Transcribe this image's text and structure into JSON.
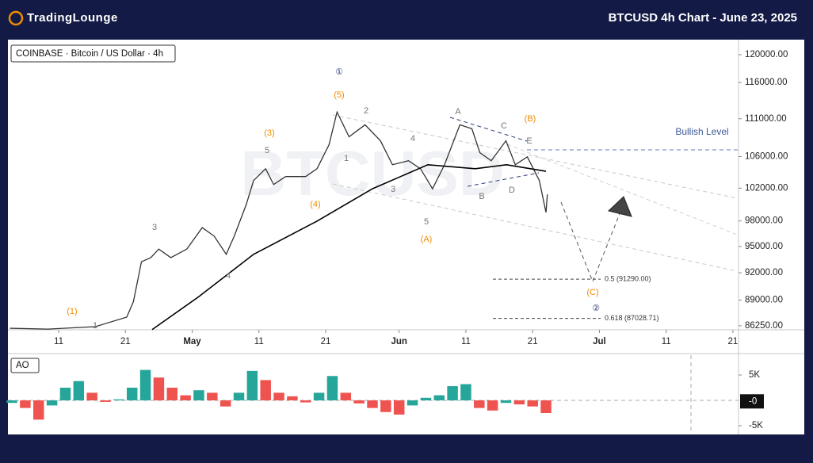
{
  "header": {
    "logo": "TradingLounge",
    "title": "BTCUSD 4h Chart - June 23, 2025"
  },
  "chart_data": [
    {
      "type": "line",
      "symbol": "COINBASE · Bitcoin / US Dollar · 4h",
      "watermark": "BTCUSD",
      "log": true,
      "xlim": [
        93.4,
        202.6
      ],
      "xticks": [
        {
          "value": 101,
          "label": "11"
        },
        {
          "value": 111,
          "label": "21"
        },
        {
          "value": 121,
          "label": "May"
        },
        {
          "value": 131,
          "label": "11"
        },
        {
          "value": 141,
          "label": "21"
        },
        {
          "value": 152,
          "label": "Jun"
        },
        {
          "value": 162,
          "label": "11"
        },
        {
          "value": 172,
          "label": "21"
        },
        {
          "value": 182,
          "label": "Jul"
        },
        {
          "value": 192,
          "label": "11"
        },
        {
          "value": 202,
          "label": "21"
        }
      ],
      "ylim": [
        85830,
        121990
      ],
      "yticks": [
        {
          "value": 86250,
          "label": "86250.00"
        },
        {
          "value": 89000,
          "label": "89000.00"
        },
        {
          "value": 92000,
          "label": "92000.00"
        },
        {
          "value": 95000,
          "label": "95000.00"
        },
        {
          "value": 98000,
          "label": "98000.00"
        },
        {
          "value": 102000,
          "label": "102000.00"
        },
        {
          "value": 106000,
          "label": "106000.00"
        },
        {
          "value": 111000,
          "label": "111000.00"
        },
        {
          "value": 116000,
          "label": "116000.00"
        },
        {
          "value": 120000,
          "label": "120000.00"
        }
      ],
      "series": [
        {
          "color": "#333333",
          "x": [
            93.7,
            99.4,
            106.5,
            111.2,
            112.2,
            113.4,
            114.8,
            116,
            117.8,
            120.2,
            122.5,
            124.3,
            126.1,
            127.3,
            129.1,
            130.2,
            132,
            133.2,
            135,
            138,
            139.7,
            141.5,
            142.7,
            144.5,
            146.9,
            149.2,
            151,
            153.4,
            155.2,
            157,
            158.8,
            161.1,
            162.9,
            164.1,
            165.8,
            168,
            169.4,
            171.2,
            173,
            174,
            174.2
          ],
          "values": [
            85990,
            85900,
            86160,
            87170,
            88830,
            93250,
            93720,
            94700,
            93720,
            94700,
            97210,
            96200,
            94100,
            96200,
            99980,
            102950,
            104440,
            102450,
            103450,
            103450,
            104440,
            107540,
            111900,
            108580,
            110180,
            108060,
            104950,
            105460,
            104440,
            101920,
            104950,
            110180,
            109650,
            106500,
            105460,
            108060,
            104950,
            105960,
            102950,
            99020,
            101220
          ]
        },
        {
          "color": "#000000",
          "x": [
            115,
            122,
            130.2,
            139.7,
            148,
            156.3,
            163.4,
            168.1,
            174
          ],
          "values": [
            85850,
            89370,
            94100,
            97980,
            101920,
            104950,
            104440,
            104950,
            104110
          ]
        }
      ],
      "annotations": [
        {
          "text": "(1)",
          "color": "#f08c00"
        },
        {
          "text": "(3)",
          "color": "#f08c00"
        },
        {
          "text": "(5)",
          "color": "#f08c00"
        },
        {
          "text": "(4)",
          "color": "#f08c00"
        },
        {
          "text": "(A)",
          "color": "#f08c00"
        },
        {
          "text": "(B)",
          "color": "#f08c00"
        },
        {
          "text": "(C)",
          "color": "#f08c00"
        },
        {
          "text": "1",
          "color": "#777777"
        },
        {
          "text": "3",
          "color": "#777777"
        },
        {
          "text": "4",
          "color": "#777777"
        },
        {
          "text": "5",
          "color": "#777777"
        },
        {
          "text": "1",
          "color": "#777777"
        },
        {
          "text": "2",
          "color": "#777777"
        },
        {
          "text": "3",
          "color": "#777777"
        },
        {
          "text": "4",
          "color": "#777777"
        },
        {
          "text": "5",
          "color": "#777777"
        },
        {
          "text": "A",
          "color": "#777777"
        },
        {
          "text": "B",
          "color": "#777777"
        },
        {
          "text": "C",
          "color": "#777777"
        },
        {
          "text": "D",
          "color": "#777777"
        },
        {
          "text": "E",
          "color": "#777777"
        },
        {
          "text": "①",
          "color": "#2a3a7a"
        },
        {
          "text": "②",
          "color": "#2a3a7a"
        }
      ],
      "bullish_level": {
        "label": "Bullish Level",
        "value": 106870
      },
      "fib_levels": [
        {
          "label": "0.5 (91290.00)",
          "value": 91290
        },
        {
          "label": "0.618 (87028.71)",
          "value": 87028.71
        }
      ]
    },
    {
      "type": "bar",
      "title": "AO",
      "x": [
        94,
        96,
        98,
        100,
        102,
        104,
        106,
        108,
        110,
        112,
        114,
        116,
        118,
        120,
        122,
        124,
        126,
        128,
        130,
        132,
        134,
        136,
        138,
        140,
        142,
        144,
        146,
        148,
        150,
        152,
        154,
        156,
        158,
        160,
        162,
        164,
        166,
        168,
        170,
        172,
        174
      ],
      "values": [
        -500,
        -1500,
        -3800,
        -1000,
        2500,
        3800,
        1500,
        -300,
        200,
        2500,
        6000,
        4500,
        2500,
        1000,
        2000,
        1500,
        -1200,
        1500,
        5800,
        4000,
        1500,
        800,
        -400,
        1500,
        4800,
        1500,
        -600,
        -1500,
        -2300,
        -2800,
        -1000,
        500,
        1000,
        2800,
        3200,
        -1500,
        -2000,
        -500,
        -800,
        -1200,
        -2500
      ],
      "ylim": [
        -6406,
        8906
      ],
      "yticks": [
        {
          "value": 5000,
          "label": "5K"
        },
        {
          "value": -5000,
          "label": "-5K"
        }
      ],
      "last_value": {
        "value": -200,
        "label": "-0"
      },
      "colors": {
        "up": "#26a69a",
        "down": "#ef5350"
      }
    }
  ]
}
